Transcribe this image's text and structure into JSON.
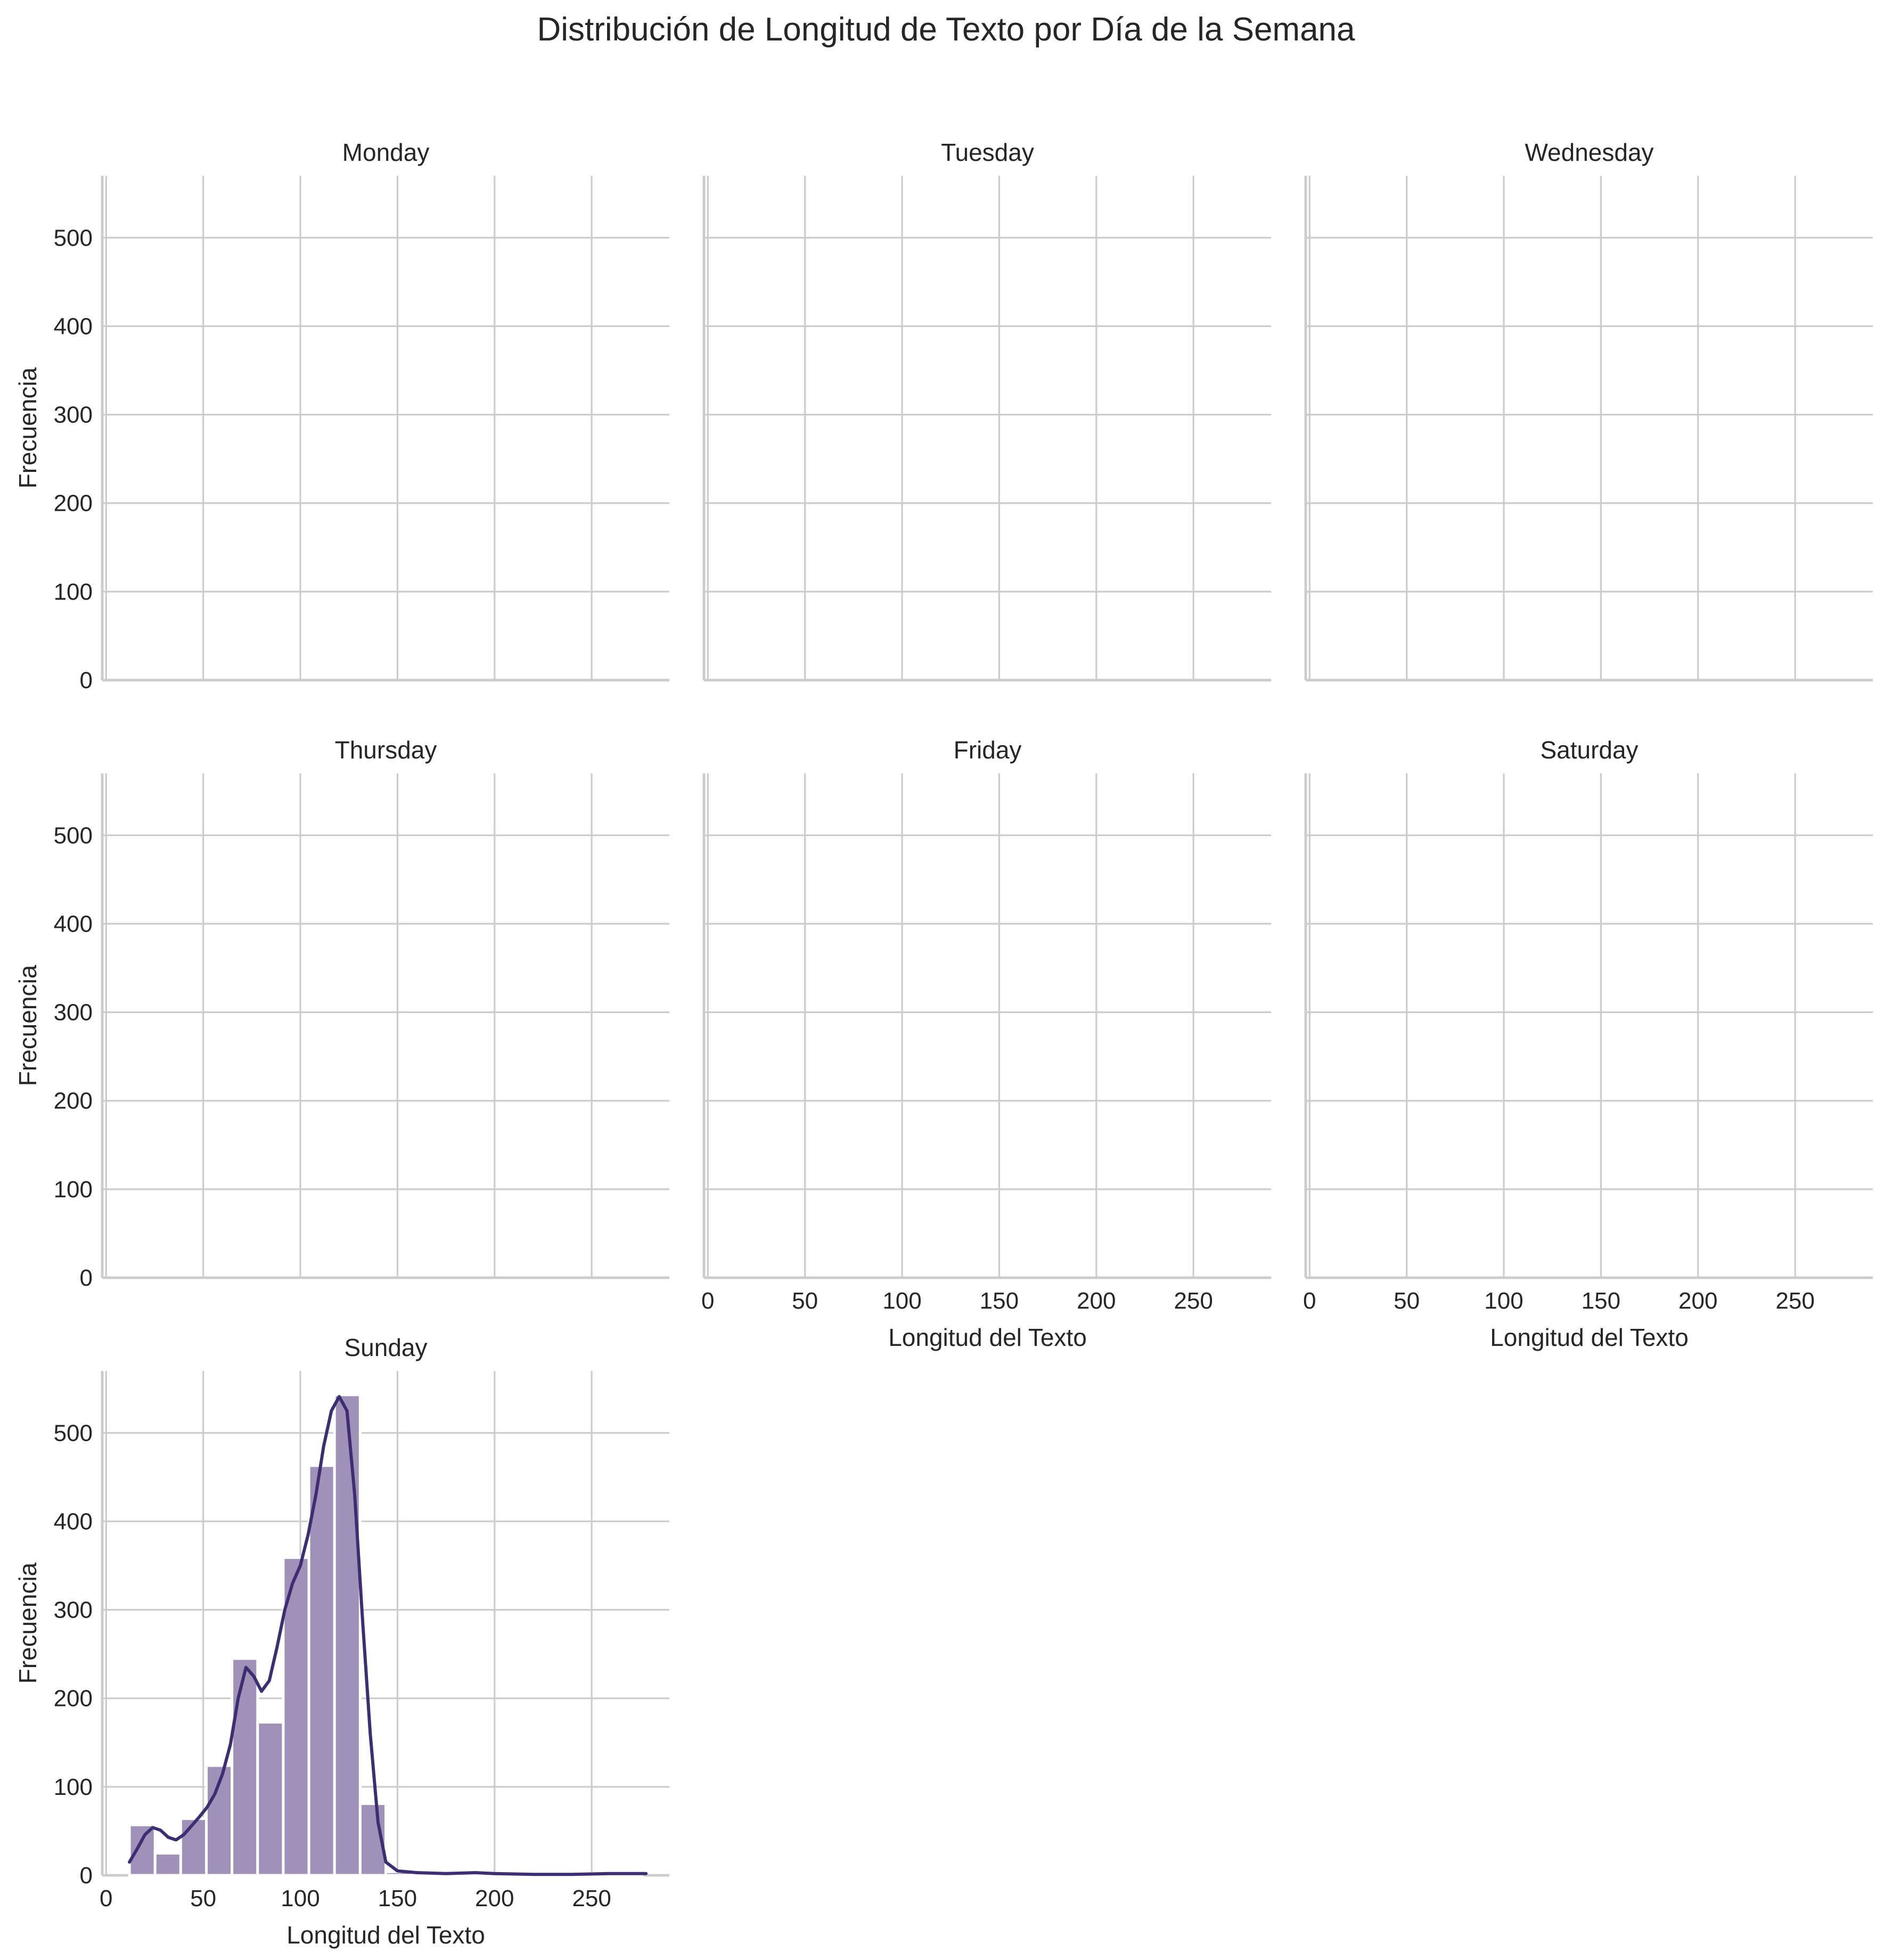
{
  "chart_data": {
    "type": "bar",
    "title": "Distribución de Longitud de Texto por Día de la Semana",
    "xlabel": "Longitud del Texto",
    "ylabel": "Frecuencia",
    "xlim": [
      -2,
      290
    ],
    "ylim": [
      0,
      570
    ],
    "xticks": [
      0,
      50,
      100,
      150,
      200,
      250
    ],
    "yticks": [
      0,
      100,
      200,
      300,
      400,
      500
    ],
    "grid": true,
    "colors": {
      "bar": "#9f91b8",
      "kde": "#3d2e74",
      "grid": "#cccccc",
      "text": "#262626"
    },
    "panels": [
      {
        "title": "Monday",
        "bins": [],
        "kde": []
      },
      {
        "title": "Tuesday",
        "bins": [],
        "kde": []
      },
      {
        "title": "Wednesday",
        "bins": [],
        "kde": []
      },
      {
        "title": "Thursday",
        "bins": [],
        "kde": []
      },
      {
        "title": "Friday",
        "bins": [],
        "kde": []
      },
      {
        "title": "Saturday",
        "bins": [],
        "kde": []
      },
      {
        "title": "Sunday",
        "bins": [
          {
            "start": 12.0,
            "end": 25.2,
            "count": 57
          },
          {
            "start": 25.2,
            "end": 38.4,
            "count": 25
          },
          {
            "start": 38.4,
            "end": 51.6,
            "count": 64
          },
          {
            "start": 51.6,
            "end": 64.8,
            "count": 124
          },
          {
            "start": 64.8,
            "end": 78.0,
            "count": 245
          },
          {
            "start": 78.0,
            "end": 91.2,
            "count": 173
          },
          {
            "start": 91.2,
            "end": 104.4,
            "count": 359
          },
          {
            "start": 104.4,
            "end": 117.6,
            "count": 463
          },
          {
            "start": 117.6,
            "end": 130.8,
            "count": 543
          },
          {
            "start": 130.8,
            "end": 144.0,
            "count": 81
          },
          {
            "start": 144.0,
            "end": 157.2,
            "count": 4
          },
          {
            "start": 157.2,
            "end": 170.4,
            "count": 2
          },
          {
            "start": 170.4,
            "end": 183.6,
            "count": 2
          },
          {
            "start": 183.6,
            "end": 196.8,
            "count": 3
          },
          {
            "start": 196.8,
            "end": 210.0,
            "count": 1
          },
          {
            "start": 210.0,
            "end": 223.2,
            "count": 2
          },
          {
            "start": 223.2,
            "end": 236.4,
            "count": 1
          },
          {
            "start": 236.4,
            "end": 249.6,
            "count": 2
          },
          {
            "start": 249.6,
            "end": 262.8,
            "count": 2
          },
          {
            "start": 262.8,
            "end": 276.0,
            "count": 2
          }
        ],
        "kde": [
          [
            12,
            15
          ],
          [
            16,
            30
          ],
          [
            20,
            46
          ],
          [
            24,
            54
          ],
          [
            28,
            51
          ],
          [
            32,
            43
          ],
          [
            36,
            40
          ],
          [
            40,
            46
          ],
          [
            44,
            56
          ],
          [
            48,
            66
          ],
          [
            52,
            77
          ],
          [
            56,
            92
          ],
          [
            60,
            115
          ],
          [
            64,
            148
          ],
          [
            68,
            200
          ],
          [
            72,
            235
          ],
          [
            76,
            225
          ],
          [
            80,
            208
          ],
          [
            84,
            220
          ],
          [
            88,
            258
          ],
          [
            92,
            300
          ],
          [
            96,
            330
          ],
          [
            100,
            350
          ],
          [
            104,
            385
          ],
          [
            108,
            430
          ],
          [
            112,
            485
          ],
          [
            116,
            525
          ],
          [
            120,
            541
          ],
          [
            124,
            525
          ],
          [
            128,
            430
          ],
          [
            132,
            290
          ],
          [
            136,
            160
          ],
          [
            140,
            60
          ],
          [
            144,
            15
          ],
          [
            150,
            5
          ],
          [
            160,
            3
          ],
          [
            175,
            2
          ],
          [
            190,
            3
          ],
          [
            200,
            2
          ],
          [
            220,
            1
          ],
          [
            240,
            1
          ],
          [
            260,
            2
          ],
          [
            278,
            2
          ]
        ]
      }
    ]
  }
}
